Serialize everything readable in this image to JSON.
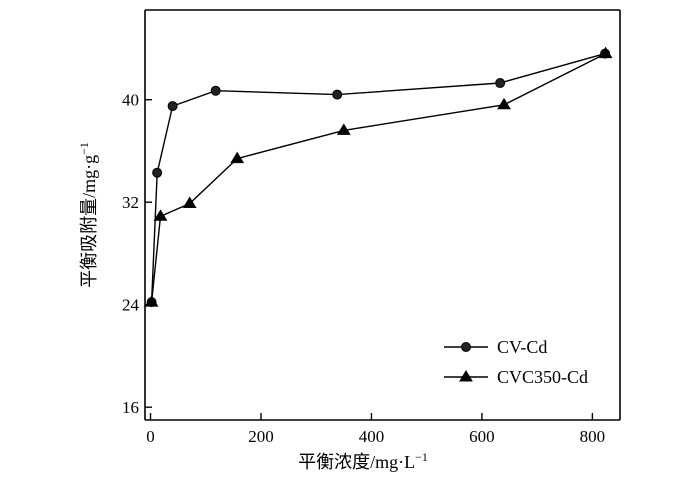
{
  "chart_data": {
    "type": "line",
    "title": "",
    "xlabel": "平衡浓度/mg·L",
    "xlabel_sup": "−1",
    "ylabel": "平衡吸附量/mg·g",
    "ylabel_sup": "−1",
    "xlim": [
      -10,
      850
    ],
    "ylim": [
      15,
      47
    ],
    "xticks": [
      0,
      200,
      400,
      600,
      800
    ],
    "yticks": [
      16,
      24,
      32,
      40
    ],
    "xtick_labels": [
      "0",
      "200",
      "400",
      "600",
      "800"
    ],
    "ytick_labels": [
      "16",
      "24",
      "32",
      "40"
    ],
    "grid": false,
    "legend_position": "bottom-right",
    "series": [
      {
        "name": "CV-Cd",
        "marker": "circle",
        "x": [
          2,
          12,
          40,
          118,
          338,
          633,
          823
        ],
        "y": [
          24.2,
          34.3,
          39.5,
          40.7,
          40.4,
          41.3,
          43.6
        ]
      },
      {
        "name": "CVC350-Cd",
        "marker": "triangle",
        "x": [
          2,
          18,
          71,
          157,
          350,
          640,
          824
        ],
        "y": [
          24.2,
          30.9,
          31.9,
          35.4,
          37.6,
          39.6,
          43.6
        ]
      }
    ]
  }
}
